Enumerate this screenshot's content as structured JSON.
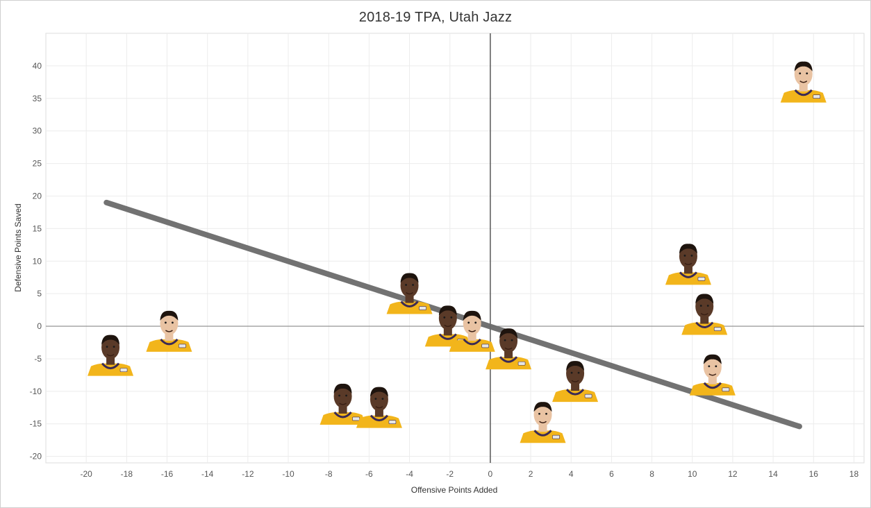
{
  "chart_data": {
    "type": "scatter",
    "title": "2018-19 TPA, Utah Jazz",
    "xlabel": "Offensive Points Added",
    "ylabel": "Defensive Points Saved",
    "xlim": [
      -22,
      18.5
    ],
    "ylim": [
      -21,
      45
    ],
    "xticks": [
      -20,
      -18,
      -16,
      -14,
      -12,
      -10,
      -8,
      -6,
      -4,
      -2,
      0,
      2,
      4,
      6,
      8,
      10,
      12,
      14,
      16,
      18
    ],
    "yticks": [
      -20,
      -15,
      -10,
      -5,
      0,
      5,
      10,
      15,
      20,
      25,
      30,
      35,
      40
    ],
    "grid": true,
    "marker": "player-headshot",
    "points": [
      {
        "x": 15.5,
        "y": 36.5
      },
      {
        "x": 9.8,
        "y": 8.5
      },
      {
        "x": 10.6,
        "y": 0.8
      },
      {
        "x": 11.0,
        "y": -8.5
      },
      {
        "x": -4.0,
        "y": 4.0
      },
      {
        "x": -2.1,
        "y": -1.0
      },
      {
        "x": -0.9,
        "y": -1.8
      },
      {
        "x": 0.9,
        "y": -4.5
      },
      {
        "x": 4.2,
        "y": -9.5
      },
      {
        "x": 2.6,
        "y": -15.8
      },
      {
        "x": -7.3,
        "y": -13.0
      },
      {
        "x": -5.5,
        "y": -13.5
      },
      {
        "x": -15.9,
        "y": -1.8
      },
      {
        "x": -18.8,
        "y": -5.5
      }
    ],
    "trendline": {
      "x": [
        -19.0,
        15.3
      ],
      "y": [
        19.0,
        -15.4
      ]
    }
  },
  "colors": {
    "grid": "#ececec",
    "zero_line_h": "#8a8a8a",
    "zero_line_v": "#555555",
    "trendline": "#6b6b6b",
    "jersey": "#f2b51b",
    "jersey_trim": "#3b2a55",
    "skin_light": "#e9c3a3",
    "skin_dark": "#5a3a28"
  }
}
